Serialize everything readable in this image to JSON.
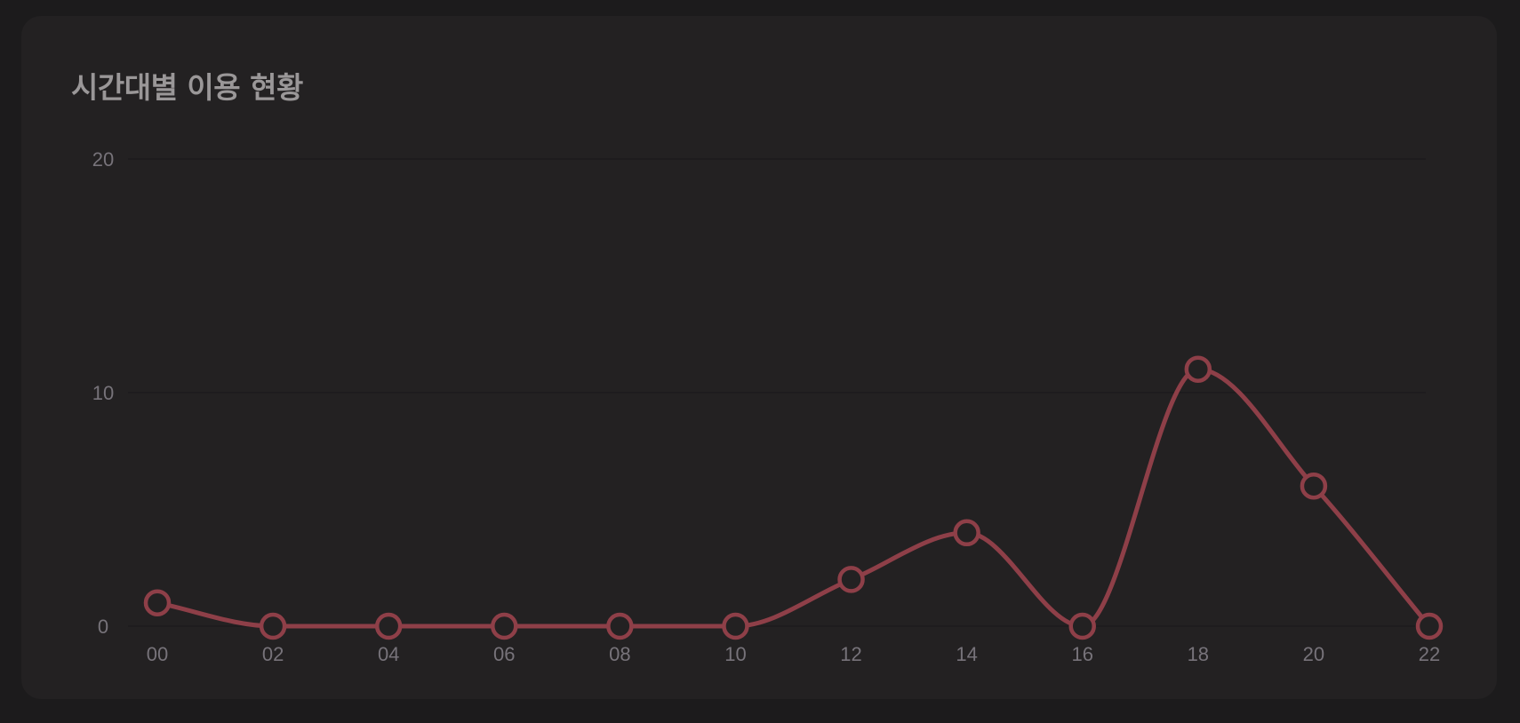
{
  "card": {
    "title": "시간대별 이용 현황"
  },
  "chart_data": {
    "type": "line",
    "title": "시간대별 이용 현황",
    "xlabel": "",
    "ylabel": "",
    "categories": [
      "00",
      "02",
      "04",
      "06",
      "08",
      "10",
      "12",
      "14",
      "16",
      "18",
      "20",
      "22"
    ],
    "values": [
      1,
      0,
      0,
      0,
      0,
      0,
      2,
      4,
      0,
      11,
      6,
      0
    ],
    "ylim": [
      0,
      20
    ],
    "yticks": [
      0,
      10,
      20
    ],
    "grid": true,
    "smooth": true,
    "color": "#8e3f48"
  }
}
